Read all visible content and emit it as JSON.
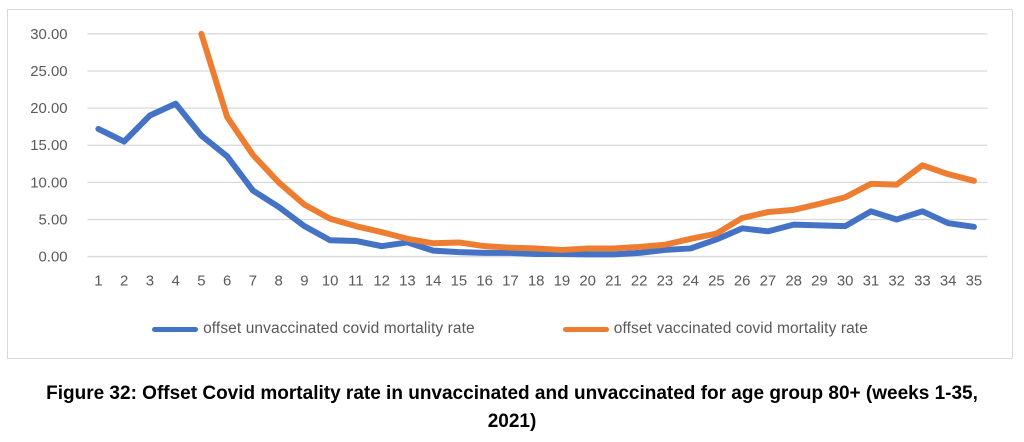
{
  "figure": {
    "caption_line1": "Figure 32: Offset Covid mortality rate in unvaccinated and unvaccinated for age group 80+ (weeks 1-35,",
    "caption_line2": "2021)"
  },
  "chart_data": {
    "type": "line",
    "x": [
      1,
      2,
      3,
      4,
      5,
      6,
      7,
      8,
      9,
      10,
      11,
      12,
      13,
      14,
      15,
      16,
      17,
      18,
      19,
      20,
      21,
      22,
      23,
      24,
      25,
      26,
      27,
      28,
      29,
      30,
      31,
      32,
      33,
      34,
      35
    ],
    "series": [
      {
        "name": "offset unvaccinated covid mortality rate",
        "color": "#4472C4",
        "values": [
          17.2,
          15.5,
          19.0,
          20.6,
          16.3,
          13.5,
          8.9,
          6.7,
          4.1,
          2.2,
          2.1,
          1.4,
          1.9,
          0.8,
          0.6,
          0.5,
          0.5,
          0.35,
          0.35,
          0.3,
          0.3,
          0.5,
          0.9,
          1.1,
          2.3,
          3.8,
          3.4,
          4.3,
          4.2,
          4.1,
          6.1,
          5.0,
          6.1,
          4.5,
          4.0
        ]
      },
      {
        "name": "offset vaccinated covid mortality rate",
        "color": "#ED7D31",
        "values": [
          null,
          null,
          null,
          null,
          30.0,
          18.8,
          13.7,
          10.0,
          7.0,
          5.1,
          4.1,
          3.3,
          2.4,
          1.8,
          1.9,
          1.4,
          1.2,
          1.1,
          0.9,
          1.1,
          1.1,
          1.3,
          1.6,
          2.4,
          3.1,
          5.2,
          6.0,
          6.3,
          7.1,
          8.0,
          9.8,
          9.7,
          12.3,
          11.1,
          10.2
        ]
      }
    ],
    "note": "vaccinated series enters the plot at week 5 clipped at the 30.00 axis maximum",
    "ylim": [
      0,
      30
    ],
    "yticks": [
      0,
      5,
      10,
      15,
      20,
      25,
      30
    ],
    "ytick_labels": [
      "0.00",
      "5.00",
      "10.00",
      "15.00",
      "20.00",
      "25.00",
      "30.00"
    ],
    "grid": "horizontal",
    "legend_position": "bottom"
  },
  "style": {
    "gridline_color": "#d9d9d9",
    "axis_text_color": "#595959"
  }
}
